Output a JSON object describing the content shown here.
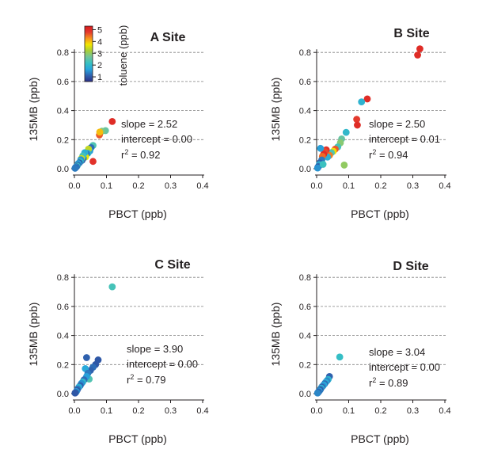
{
  "chart_data": [
    {
      "type": "scatter",
      "title": "A Site",
      "xlabel": "PBCT (ppb)",
      "ylabel": "135MB (ppb)",
      "xlim": [
        0,
        0.4
      ],
      "ylim": [
        0,
        0.8
      ],
      "xticks": [
        "0.0",
        "0.1",
        "0.2",
        "0.3",
        "0.4"
      ],
      "yticks": [
        "0.0",
        "0.2",
        "0.4",
        "0.6",
        "0.8"
      ],
      "grid": "horizontal dashed",
      "slope": "slope = 2.52",
      "intercept": "intercept = 0.00",
      "r2_prefix": "r",
      "r2_sup": "2",
      "r2_value": " = 0.92",
      "points": [
        {
          "x": 0.118,
          "y": 0.325,
          "c": 5.0
        },
        {
          "x": 0.097,
          "y": 0.262,
          "c": 2.6
        },
        {
          "x": 0.086,
          "y": 0.258,
          "c": 2.8
        },
        {
          "x": 0.078,
          "y": 0.232,
          "c": 4.6
        },
        {
          "x": 0.079,
          "y": 0.252,
          "c": 4.0
        },
        {
          "x": 0.058,
          "y": 0.05,
          "c": 4.9
        },
        {
          "x": 0.058,
          "y": 0.16,
          "c": 2.4
        },
        {
          "x": 0.052,
          "y": 0.145,
          "c": 1.2
        },
        {
          "x": 0.048,
          "y": 0.122,
          "c": 1.6
        },
        {
          "x": 0.044,
          "y": 0.135,
          "c": 3.4
        },
        {
          "x": 0.042,
          "y": 0.106,
          "c": 2.0
        },
        {
          "x": 0.038,
          "y": 0.102,
          "c": 1.3
        },
        {
          "x": 0.035,
          "y": 0.082,
          "c": 3.7
        },
        {
          "x": 0.032,
          "y": 0.11,
          "c": 1.8
        },
        {
          "x": 0.028,
          "y": 0.072,
          "c": 1.4
        },
        {
          "x": 0.026,
          "y": 0.088,
          "c": 2.3
        },
        {
          "x": 0.024,
          "y": 0.058,
          "c": 1.1
        },
        {
          "x": 0.022,
          "y": 0.07,
          "c": 3.5
        },
        {
          "x": 0.02,
          "y": 0.062,
          "c": 1.5
        },
        {
          "x": 0.018,
          "y": 0.048,
          "c": 2.1
        },
        {
          "x": 0.015,
          "y": 0.04,
          "c": 1.0
        },
        {
          "x": 0.012,
          "y": 0.035,
          "c": 1.7
        },
        {
          "x": 0.01,
          "y": 0.026,
          "c": 1.2
        },
        {
          "x": 0.008,
          "y": 0.018,
          "c": 2.2
        },
        {
          "x": 0.006,
          "y": 0.013,
          "c": 1.1
        },
        {
          "x": 0.004,
          "y": 0.01,
          "c": 1.5
        },
        {
          "x": 0.003,
          "y": 0.006,
          "c": 1.0
        },
        {
          "x": 0.002,
          "y": 0.003,
          "c": 1.3
        }
      ],
      "colorbar": {
        "label": "toluene (ppb)",
        "ticks": [
          "1",
          "2",
          "3",
          "4",
          "5"
        ],
        "range": [
          0.6,
          5.3
        ]
      }
    },
    {
      "type": "scatter",
      "title": "B Site",
      "xlabel": "PBCT (ppb)",
      "ylabel": "135MB (ppb)",
      "xlim": [
        0,
        0.4
      ],
      "ylim": [
        0,
        0.8
      ],
      "xticks": [
        "0.0",
        "0.1",
        "0.2",
        "0.3",
        "0.4"
      ],
      "yticks": [
        "0.0",
        "0.2",
        "0.4",
        "0.6",
        "0.8"
      ],
      "grid": "horizontal dashed",
      "slope": "slope = 2.50",
      "intercept": "intercept = 0.01",
      "r2_prefix": "r",
      "r2_sup": "2",
      "r2_value": " = 0.94",
      "points": [
        {
          "x": 0.322,
          "y": 0.825,
          "c": 5.0
        },
        {
          "x": 0.315,
          "y": 0.782,
          "c": 5.0
        },
        {
          "x": 0.158,
          "y": 0.48,
          "c": 5.0
        },
        {
          "x": 0.14,
          "y": 0.46,
          "c": 1.9
        },
        {
          "x": 0.125,
          "y": 0.34,
          "c": 4.8
        },
        {
          "x": 0.127,
          "y": 0.3,
          "c": 5.0
        },
        {
          "x": 0.092,
          "y": 0.25,
          "c": 2.0
        },
        {
          "x": 0.086,
          "y": 0.025,
          "c": 3.0
        },
        {
          "x": 0.078,
          "y": 0.205,
          "c": 2.6
        },
        {
          "x": 0.074,
          "y": 0.178,
          "c": 2.9
        },
        {
          "x": 0.066,
          "y": 0.15,
          "c": 2.3
        },
        {
          "x": 0.058,
          "y": 0.135,
          "c": 4.6
        },
        {
          "x": 0.052,
          "y": 0.12,
          "c": 3.8
        },
        {
          "x": 0.046,
          "y": 0.11,
          "c": 2.4
        },
        {
          "x": 0.04,
          "y": 0.092,
          "c": 4.4
        },
        {
          "x": 0.034,
          "y": 0.08,
          "c": 1.8
        },
        {
          "x": 0.03,
          "y": 0.13,
          "c": 4.9
        },
        {
          "x": 0.026,
          "y": 0.118,
          "c": 4.7
        },
        {
          "x": 0.022,
          "y": 0.1,
          "c": 5.0
        },
        {
          "x": 0.018,
          "y": 0.085,
          "c": 4.5
        },
        {
          "x": 0.012,
          "y": 0.14,
          "c": 1.6
        },
        {
          "x": 0.016,
          "y": 0.06,
          "c": 1.3
        },
        {
          "x": 0.01,
          "y": 0.04,
          "c": 1.1
        },
        {
          "x": 0.008,
          "y": 0.028,
          "c": 1.9
        },
        {
          "x": 0.006,
          "y": 0.016,
          "c": 1.2
        },
        {
          "x": 0.004,
          "y": 0.01,
          "c": 1.0
        },
        {
          "x": 0.003,
          "y": 0.005,
          "c": 1.5
        },
        {
          "x": 0.02,
          "y": 0.03,
          "c": 2.2
        }
      ]
    },
    {
      "type": "scatter",
      "title": "C Site",
      "xlabel": "PBCT (ppb)",
      "ylabel": "135MB (ppb)",
      "xlim": [
        0,
        0.4
      ],
      "ylim": [
        0,
        0.8
      ],
      "xticks": [
        "0.0",
        "0.1",
        "0.2",
        "0.3",
        "0.4"
      ],
      "yticks": [
        "0.0",
        "0.2",
        "0.4",
        "0.6",
        "0.8"
      ],
      "grid": "horizontal dashed",
      "slope": "slope = 3.90",
      "intercept": "intercept = 0.00",
      "r2_prefix": "r",
      "r2_sup": "2",
      "r2_value": " = 0.79",
      "points": [
        {
          "x": 0.118,
          "y": 0.735,
          "c": 2.3
        },
        {
          "x": 0.074,
          "y": 0.232,
          "c": 1.0
        },
        {
          "x": 0.038,
          "y": 0.248,
          "c": 1.1
        },
        {
          "x": 0.066,
          "y": 0.2,
          "c": 1.0
        },
        {
          "x": 0.058,
          "y": 0.182,
          "c": 1.2
        },
        {
          "x": 0.05,
          "y": 0.16,
          "c": 1.1
        },
        {
          "x": 0.034,
          "y": 0.172,
          "c": 1.7
        },
        {
          "x": 0.042,
          "y": 0.14,
          "c": 1.3
        },
        {
          "x": 0.046,
          "y": 0.1,
          "c": 2.4
        },
        {
          "x": 0.038,
          "y": 0.118,
          "c": 1.6
        },
        {
          "x": 0.03,
          "y": 0.095,
          "c": 1.2
        },
        {
          "x": 0.026,
          "y": 0.08,
          "c": 2.0
        },
        {
          "x": 0.022,
          "y": 0.07,
          "c": 1.5
        },
        {
          "x": 0.018,
          "y": 0.055,
          "c": 1.1
        },
        {
          "x": 0.014,
          "y": 0.045,
          "c": 1.8
        },
        {
          "x": 0.01,
          "y": 0.032,
          "c": 1.3
        },
        {
          "x": 0.008,
          "y": 0.022,
          "c": 1.0
        },
        {
          "x": 0.006,
          "y": 0.014,
          "c": 1.6
        },
        {
          "x": 0.004,
          "y": 0.008,
          "c": 1.2
        },
        {
          "x": 0.002,
          "y": 0.004,
          "c": 1.0
        }
      ]
    },
    {
      "type": "scatter",
      "title": "D Site",
      "xlabel": "PBCT (ppb)",
      "ylabel": "135MB (ppb)",
      "xlim": [
        0,
        0.4
      ],
      "ylim": [
        0,
        0.8
      ],
      "xticks": [
        "0.0",
        "0.1",
        "0.2",
        "0.3",
        "0.4"
      ],
      "yticks": [
        "0.0",
        "0.2",
        "0.4",
        "0.6",
        "0.8"
      ],
      "grid": "horizontal dashed",
      "slope": "slope = 3.04",
      "intercept": "intercept = 0.00",
      "r2_prefix": "r",
      "r2_sup": "2",
      "r2_value": " = 0.89",
      "points": [
        {
          "x": 0.072,
          "y": 0.252,
          "c": 2.1
        },
        {
          "x": 0.04,
          "y": 0.118,
          "c": 1.1
        },
        {
          "x": 0.036,
          "y": 0.098,
          "c": 1.9
        },
        {
          "x": 0.032,
          "y": 0.088,
          "c": 1.4
        },
        {
          "x": 0.028,
          "y": 0.078,
          "c": 1.8
        },
        {
          "x": 0.025,
          "y": 0.068,
          "c": 1.2
        },
        {
          "x": 0.022,
          "y": 0.06,
          "c": 1.7
        },
        {
          "x": 0.019,
          "y": 0.052,
          "c": 1.5
        },
        {
          "x": 0.016,
          "y": 0.045,
          "c": 1.1
        },
        {
          "x": 0.014,
          "y": 0.038,
          "c": 1.9
        },
        {
          "x": 0.012,
          "y": 0.03,
          "c": 1.3
        },
        {
          "x": 0.01,
          "y": 0.024,
          "c": 1.0
        },
        {
          "x": 0.008,
          "y": 0.018,
          "c": 1.6
        },
        {
          "x": 0.006,
          "y": 0.012,
          "c": 1.2
        },
        {
          "x": 0.004,
          "y": 0.007,
          "c": 1.0
        },
        {
          "x": 0.003,
          "y": 0.004,
          "c": 1.4
        }
      ]
    }
  ],
  "colors": {
    "axis": "#231f20",
    "grid": "#808080",
    "colormap": [
      "#2b2f86",
      "#2f63b0",
      "#27a6dd",
      "#37c1c2",
      "#72c59b",
      "#a6ce39",
      "#f2e700",
      "#f7941d",
      "#e53a2e",
      "#d7191c"
    ]
  }
}
